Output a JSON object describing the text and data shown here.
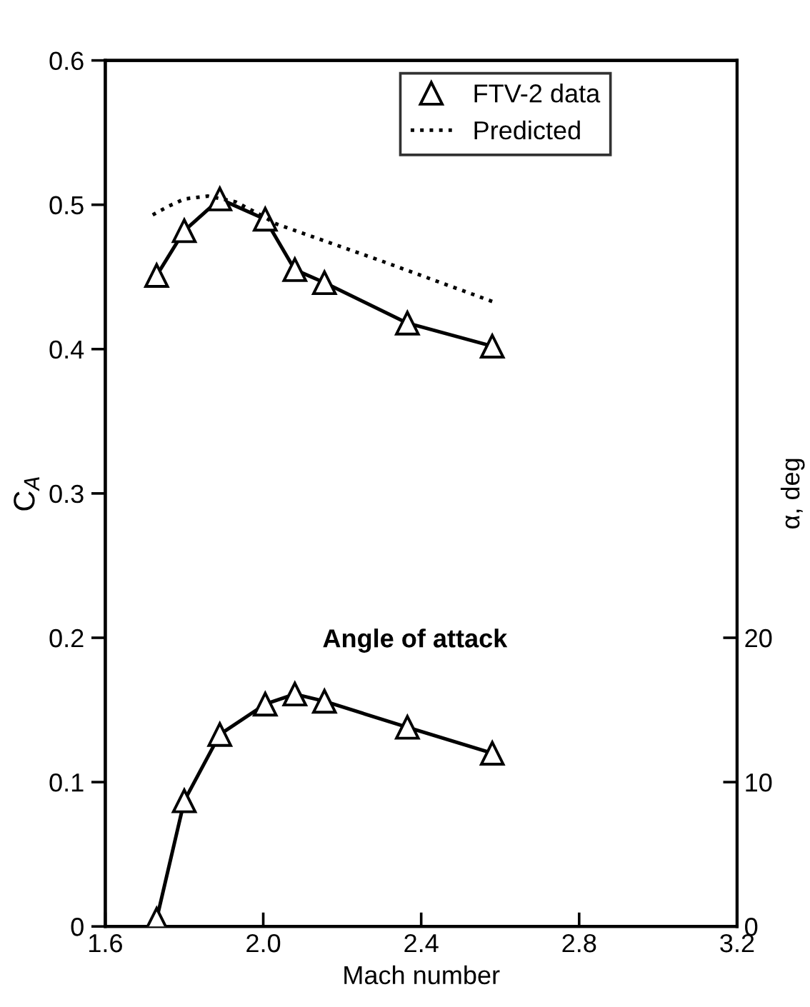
{
  "chart_data": {
    "type": "line",
    "xlabel": "Mach number",
    "ylabel": "C$_{A}$",
    "y2label": "α, deg",
    "xlim": [
      1.6,
      3.2
    ],
    "xticks": [
      1.6,
      {
        "value": 2,
        "label": "2.0"
      },
      2.4,
      2.8,
      3.2
    ],
    "ylim": [
      0,
      0.6
    ],
    "yticks": [
      0,
      0.1,
      0.2,
      0.3,
      0.4,
      0.5,
      0.6
    ],
    "y2lim": [
      0,
      60
    ],
    "y2ticks": [
      0,
      10,
      20
    ],
    "grid": false,
    "legend": "top right",
    "series": [
      {
        "name": "FTV-2 data",
        "color": "#000000",
        "marker": "triangle",
        "line_style": "solid",
        "x": [
          1.73,
          1.8,
          1.89,
          2.005,
          2.08,
          2.155,
          2.365,
          2.58
        ],
        "values": [
          0.451,
          0.482,
          0.504,
          0.49,
          0.455,
          0.446,
          0.418,
          0.402
        ]
      },
      {
        "name": "Predicted",
        "color": "#000000",
        "marker": "none",
        "line_style": "dotted",
        "x": [
          1.72,
          1.76,
          1.8,
          1.86,
          1.93,
          2.0,
          2.03,
          2.3,
          2.58
        ],
        "values": [
          0.493,
          0.499,
          0.504,
          0.506,
          0.502,
          0.492,
          0.487,
          0.461,
          0.433
        ]
      },
      {
        "color": "#000000",
        "marker": "triangle",
        "line_style": "solid",
        "axis": "y2",
        "x": [
          1.73,
          1.8,
          1.89,
          2.005,
          2.08,
          2.155,
          2.365,
          2.58
        ],
        "values": [
          0.5,
          8.7,
          13.3,
          15.4,
          16.1,
          15.6,
          13.8,
          12.0
        ]
      }
    ],
    "annotations": [
      "Angle of attack"
    ]
  }
}
